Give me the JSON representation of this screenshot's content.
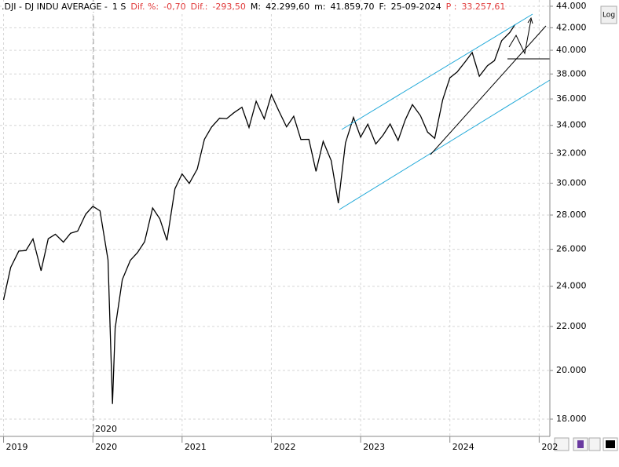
{
  "header": {
    "symbol": ".DJI - DJ INDU AVERAGE -",
    "period": "1 S",
    "fields": [
      {
        "label": "Dif. %:",
        "value": "-0,70",
        "color": "#e03a3a"
      },
      {
        "label": "Dif.:",
        "value": "-293,50",
        "color": "#e03a3a"
      },
      {
        "label": "M:",
        "value": "42.299,60",
        "color": "#000000"
      },
      {
        "label": "m:",
        "value": "41.859,70",
        "color": "#000000"
      },
      {
        "label": "F:",
        "value": "25-09-2024",
        "color": "#000000"
      },
      {
        "label": "P :",
        "value": "33.257,61",
        "color": "#e03a3a"
      }
    ]
  },
  "log_button": "Log",
  "cursor_label": "2020",
  "chart_data": {
    "type": "line",
    "color": "#000000",
    "log_scale": true,
    "grid": true,
    "x": [
      2019,
      2019.08,
      2019.17,
      2019.25,
      2019.33,
      2019.42,
      2019.5,
      2019.58,
      2019.67,
      2019.75,
      2019.83,
      2019.92,
      2020,
      2020.08,
      2020.17,
      2020.22,
      2020.25,
      2020.33,
      2020.42,
      2020.5,
      2020.58,
      2020.67,
      2020.75,
      2020.83,
      2020.92,
      2021,
      2021.08,
      2021.17,
      2021.25,
      2021.33,
      2021.42,
      2021.5,
      2021.58,
      2021.67,
      2021.75,
      2021.83,
      2021.92,
      2022,
      2022.08,
      2022.17,
      2022.25,
      2022.33,
      2022.42,
      2022.5,
      2022.58,
      2022.67,
      2022.75,
      2022.83,
      2022.92,
      2023,
      2023.08,
      2023.17,
      2023.25,
      2023.33,
      2023.42,
      2023.5,
      2023.58,
      2023.67,
      2023.75,
      2023.83,
      2023.92,
      2024,
      2024.08,
      2024.17,
      2024.25,
      2024.33,
      2024.42,
      2024.5,
      2024.58,
      2024.67,
      2024.73
    ],
    "values": [
      23300,
      25000,
      25900,
      25930,
      26590,
      24815,
      26600,
      26864,
      26403,
      26917,
      27046,
      28051,
      28538,
      28256,
      25409,
      18600,
      21917,
      24346,
      25383,
      25813,
      26428,
      28430,
      27782,
      26502,
      29639,
      30606,
      29983,
      30932,
      32982,
      33875,
      34529,
      34503,
      34935,
      35361,
      33844,
      35820,
      34484,
      36338,
      35132,
      33893,
      34678,
      32977,
      32990,
      30775,
      32845,
      31510,
      28726,
      32733,
      34590,
      33147,
      34086,
      32657,
      33274,
      34098,
      32908,
      34408,
      35560,
      34722,
      33508,
      33053,
      35951,
      37690,
      38150,
      38996,
      39807,
      37816,
      38686,
      39119,
      40843,
      41563,
      42300
    ],
    "xlim": [
      2018.96,
      2025.12
    ],
    "xticks": [
      2019,
      2020,
      2021,
      2022,
      2023,
      2024,
      {
        "value": 2025,
        "label": "202"
      }
    ],
    "ylim": [
      17340,
      44600
    ],
    "yticks": [
      {
        "value": 18000,
        "label": "18.000"
      },
      {
        "value": 20000,
        "label": "20.000"
      },
      {
        "value": 22000,
        "label": "22.000"
      },
      {
        "value": 24000,
        "label": "24.000"
      },
      {
        "value": 26000,
        "label": "26.000"
      },
      {
        "value": 28000,
        "label": "28.000"
      },
      {
        "value": 30000,
        "label": "30.000"
      },
      {
        "value": 32000,
        "label": "32.000"
      },
      {
        "value": 34000,
        "label": "34.000"
      },
      {
        "value": 36000,
        "label": "36.000"
      },
      {
        "value": 38000,
        "label": "38.000"
      },
      {
        "value": 40000,
        "label": "40.000"
      },
      {
        "value": 42000,
        "label": "42.000"
      },
      {
        "value": 44000,
        "label": "44.000"
      }
    ]
  }
}
